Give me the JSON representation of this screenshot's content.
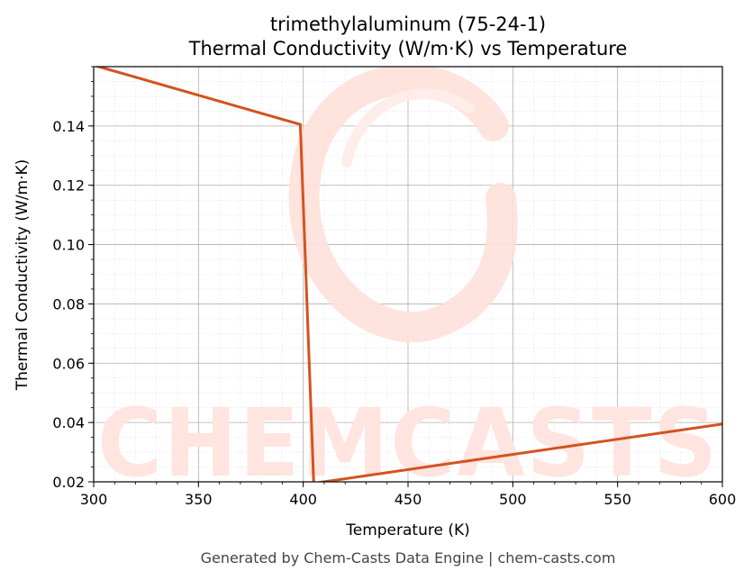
{
  "chart_data": {
    "type": "line",
    "title": "trimethylaluminum (75-24-1)",
    "subtitle": "Thermal Conductivity (W/m·K) vs Temperature",
    "xlabel": "Temperature (K)",
    "ylabel": "Thermal Conductivity (W/m·K)",
    "xlim": [
      300,
      600
    ],
    "ylim": [
      0.02,
      0.16
    ],
    "x_ticks": [
      300,
      350,
      400,
      450,
      500,
      550,
      600
    ],
    "y_ticks": [
      0.02,
      0.04,
      0.06,
      0.08,
      0.1,
      0.12,
      0.14
    ],
    "y_tick_labels": [
      "0.02",
      "0.04",
      "0.06",
      "0.08",
      "0.10",
      "0.12",
      "0.14"
    ],
    "grid": true,
    "series": [
      {
        "x": [
          300,
          398.6,
          405,
          600
        ],
        "y": [
          0.1605,
          0.1405,
          0.0195,
          0.0395
        ],
        "color": "#d4521f"
      }
    ]
  },
  "watermark": "CHEMCASTS",
  "footer": "Generated by Chem-Casts Data Engine | chem-casts.com"
}
